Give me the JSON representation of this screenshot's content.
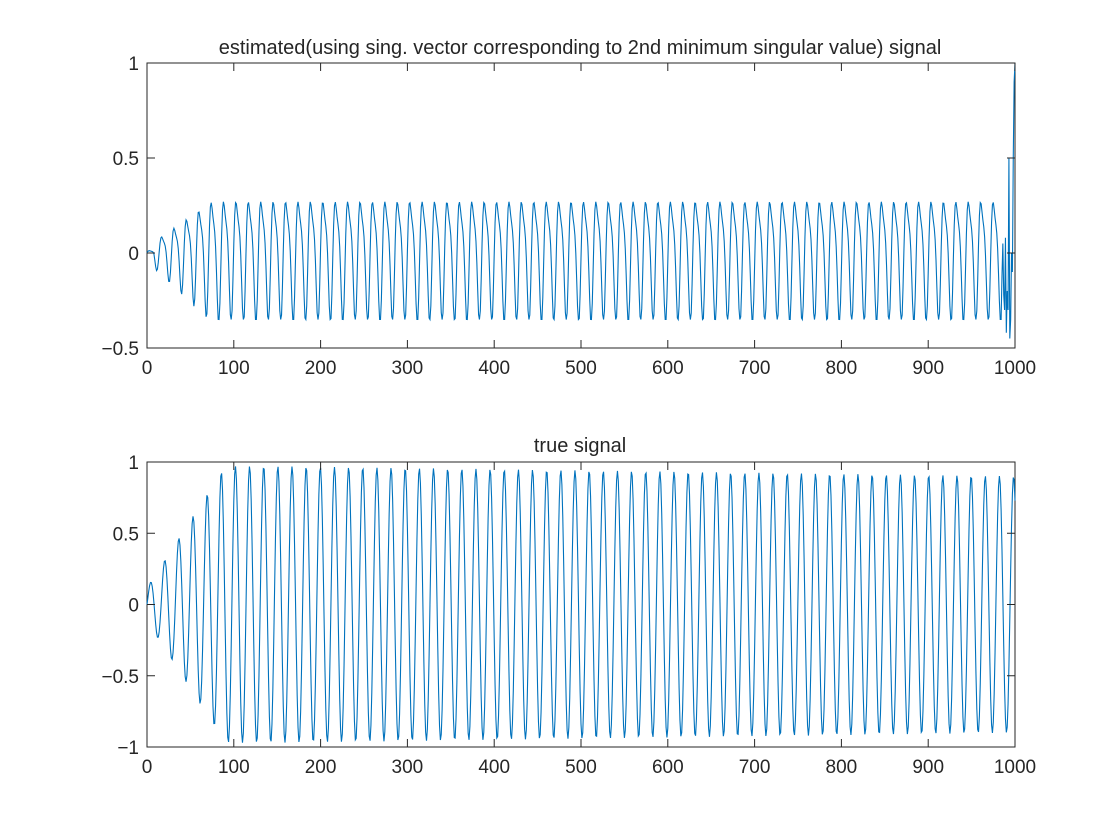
{
  "colors": {
    "series": "#0072BD",
    "axes": "#262626",
    "background": "#ffffff"
  },
  "chart_data": [
    {
      "type": "line",
      "title": "estimated(using sing. vector corresponding to 2nd minimum singular value) signal",
      "xlabel": "",
      "ylabel": "",
      "xlim": [
        0,
        1000
      ],
      "ylim": [
        -0.5,
        1
      ],
      "xticks": [
        0,
        100,
        200,
        300,
        400,
        500,
        600,
        700,
        800,
        900,
        1000
      ],
      "xtick_labels": [
        "0",
        "100",
        "200",
        "300",
        "400",
        "500",
        "600",
        "700",
        "800",
        "900",
        "1000"
      ],
      "yticks": [
        -0.5,
        0,
        0.5,
        1
      ],
      "ytick_labels": [
        "−0.5",
        "0",
        "0.5",
        "1"
      ],
      "grid": false,
      "series": [
        {
          "n_points": 1000,
          "period": 14.3,
          "envelope": {
            "peak": 0.35,
            "trough": -0.35,
            "ramp_start": 0,
            "ramp_end": 75
          },
          "shape": "periodic with secondary notch near -0.18",
          "edge_burst": {
            "x_start": 985,
            "x_end": 1000,
            "max": 1.0,
            "min": -0.45
          }
        }
      ]
    },
    {
      "type": "line",
      "title": "true signal",
      "xlabel": "",
      "ylabel": "",
      "xlim": [
        0,
        1000
      ],
      "ylim": [
        -1,
        1
      ],
      "xticks": [
        0,
        100,
        200,
        300,
        400,
        500,
        600,
        700,
        800,
        900,
        1000
      ],
      "xtick_labels": [
        "0",
        "100",
        "200",
        "300",
        "400",
        "500",
        "600",
        "700",
        "800",
        "900",
        "1000"
      ],
      "yticks": [
        -1,
        -0.5,
        0,
        0.5,
        1
      ],
      "ytick_labels": [
        "−1",
        "−0.5",
        "0",
        "0.5",
        "1"
      ],
      "grid": false,
      "series": [
        {
          "n_points": 1000,
          "period": 16.3,
          "envelope": {
            "peak_max": 0.97,
            "peak_end": 0.9,
            "ramp_start": 0,
            "ramp_end": 90
          },
          "shape": "sinusoid starting at 0"
        }
      ]
    }
  ]
}
